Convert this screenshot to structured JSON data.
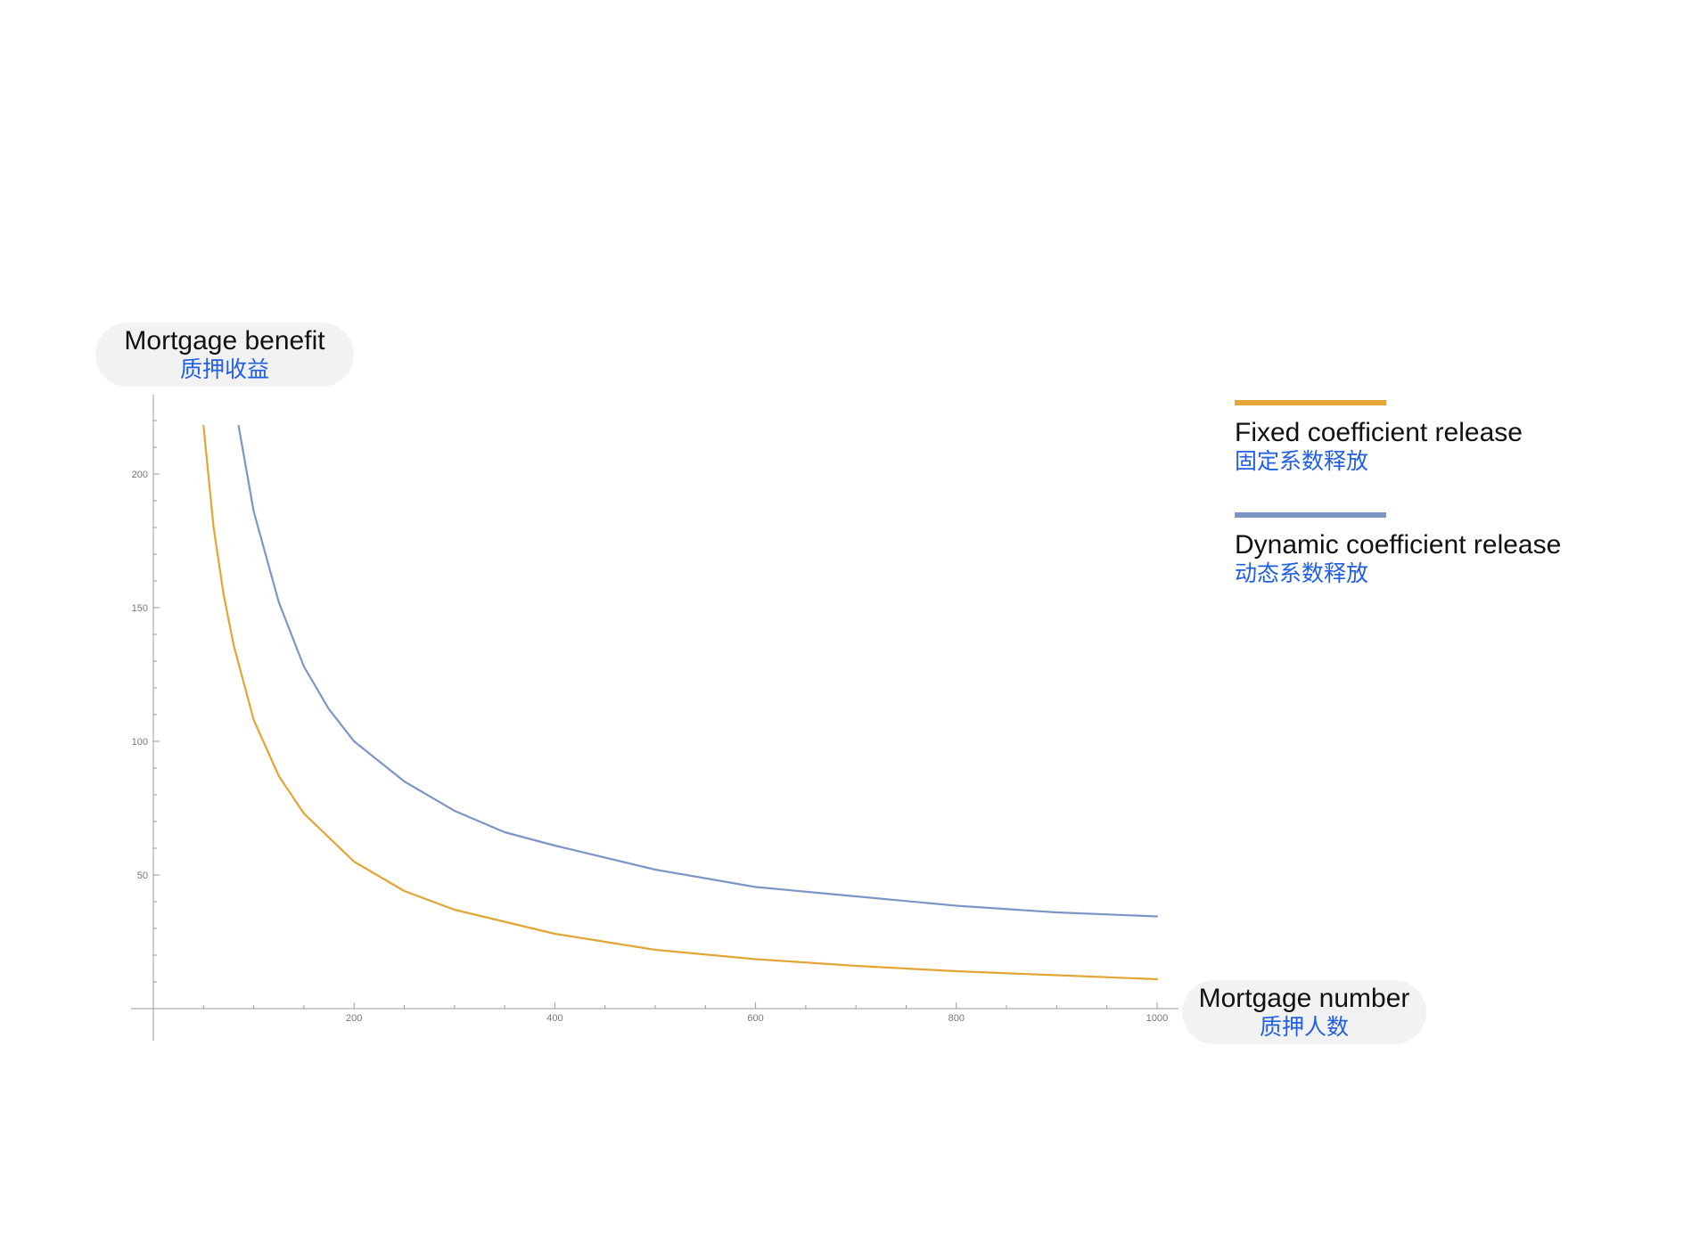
{
  "chart_data": {
    "type": "line",
    "ylabel": {
      "en": "Mortgage benefit",
      "zh": "质押收益"
    },
    "xlabel": {
      "en": "Mortgage number",
      "zh": "质押人数"
    },
    "xlim": [
      0,
      1020
    ],
    "ylim": [
      0,
      230
    ],
    "x_ticks": [
      200,
      400,
      600,
      800,
      1000
    ],
    "y_ticks": [
      50,
      100,
      150,
      200
    ],
    "grid": false,
    "legend_position": "right",
    "series": [
      {
        "name": "Fixed coefficient release",
        "name_zh": "固定系数释放",
        "color": "#e3a535",
        "x": [
          50,
          60,
          70,
          80,
          100,
          125,
          150,
          200,
          250,
          300,
          400,
          500,
          600,
          700,
          800,
          900,
          1000
        ],
        "y": [
          218,
          180,
          155,
          136,
          108,
          87,
          73,
          55,
          44,
          37,
          28,
          22,
          18.5,
          16,
          14,
          12.5,
          11
        ]
      },
      {
        "name": "Dynamic coefficient release",
        "name_zh": "动态系数释放",
        "color": "#7b96c6",
        "x": [
          85,
          100,
          125,
          150,
          175,
          200,
          250,
          300,
          350,
          400,
          500,
          600,
          700,
          800,
          900,
          1000
        ],
        "y": [
          218,
          186,
          152,
          128,
          112,
          100,
          85,
          74,
          66,
          61,
          52,
          45.5,
          42,
          38.5,
          36,
          34.5
        ]
      }
    ]
  }
}
